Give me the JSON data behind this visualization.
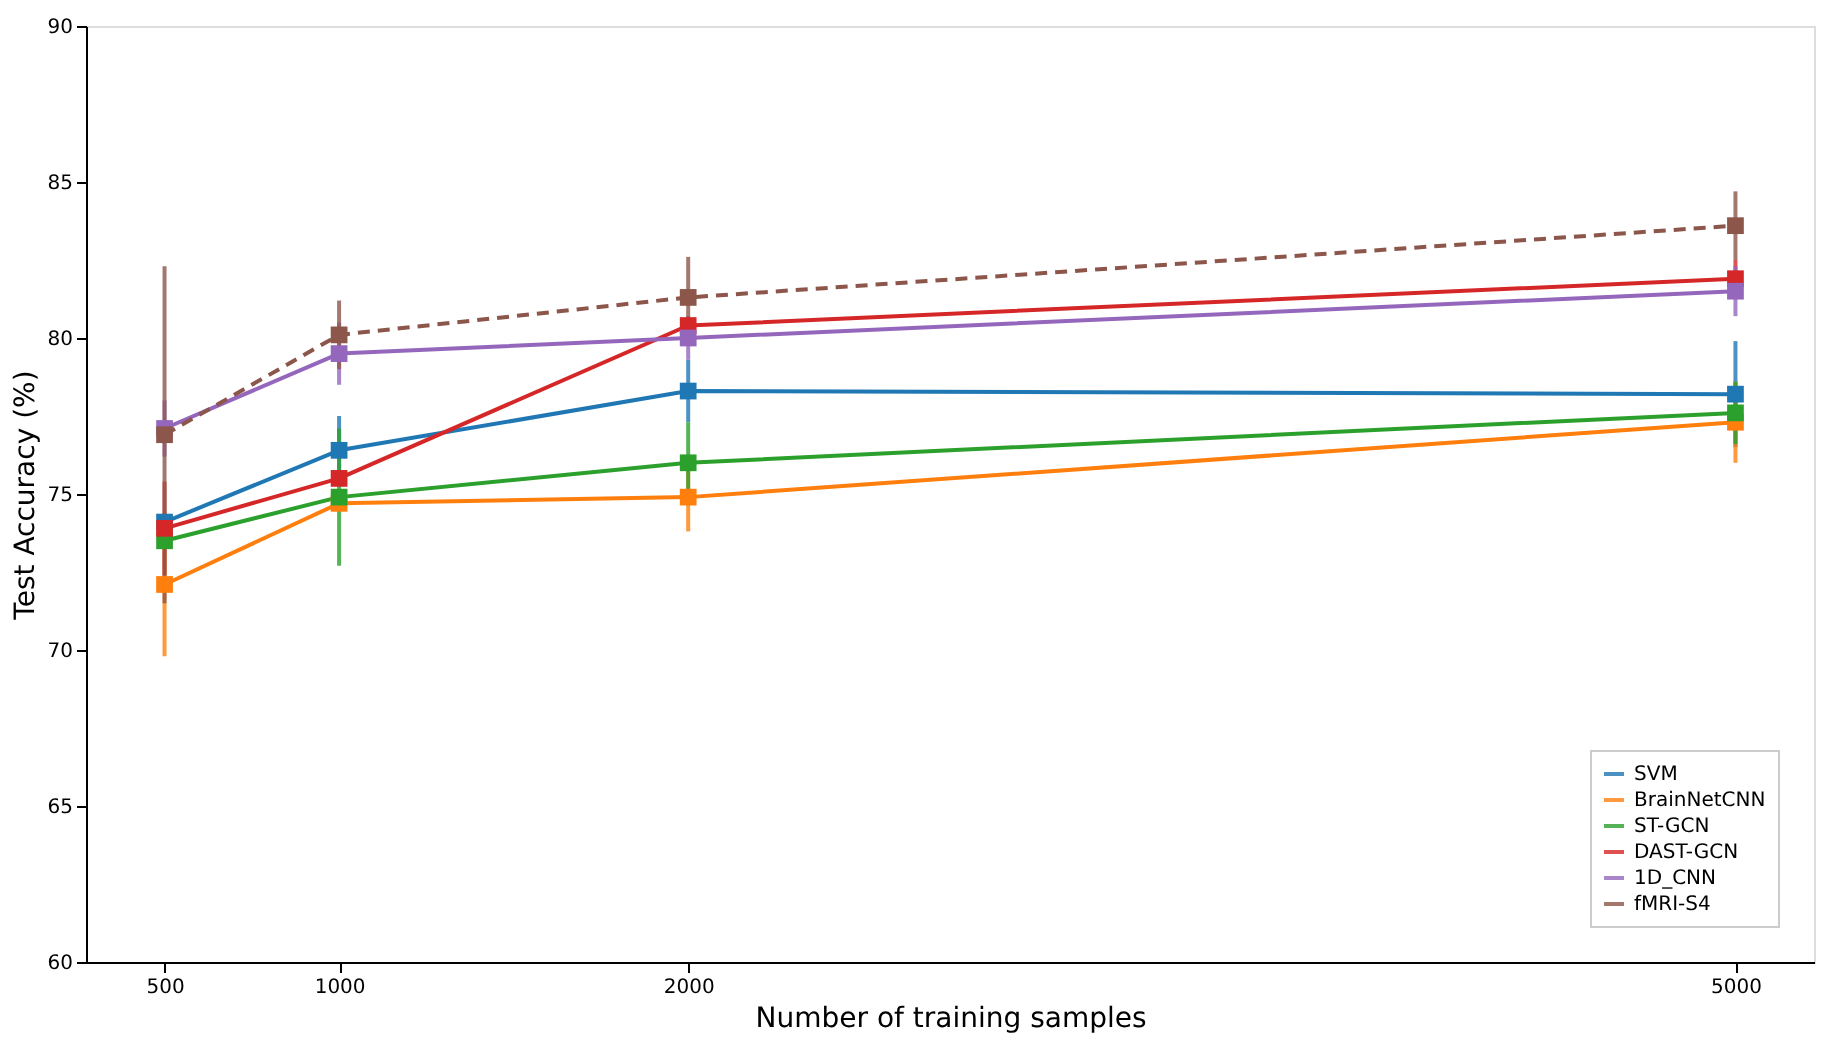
{
  "chart_data": {
    "type": "line",
    "xlabel": "Number of training samples",
    "ylabel": "Test Accuracy (%)",
    "x": [
      500,
      1000,
      2000,
      5000
    ],
    "series": [
      {
        "name": "SVM",
        "color": "#1f77b4",
        "values": [
          74.1,
          76.4,
          78.3,
          78.2
        ],
        "errors": [
          null,
          1.1,
          1.0,
          1.7
        ]
      },
      {
        "name": "BrainNetCNN",
        "color": "#ff7f0e",
        "values": [
          72.1,
          74.7,
          74.9,
          77.3
        ],
        "errors": [
          2.3,
          null,
          1.1,
          1.3
        ]
      },
      {
        "name": "ST-GCN",
        "color": "#2ca02c",
        "values": [
          73.5,
          74.9,
          76.0,
          77.6
        ],
        "errors": [
          null,
          2.2,
          1.3,
          1.0
        ]
      },
      {
        "name": "DAST-GCN",
        "color": "#d62728",
        "values": [
          73.9,
          75.5,
          80.4,
          81.9
        ],
        "errors": [
          1.5,
          null,
          null,
          0.6
        ]
      },
      {
        "name": "1D_CNN",
        "color": "#9467bd",
        "values": [
          77.1,
          79.5,
          80.0,
          81.5
        ],
        "errors": [
          0.9,
          1.0,
          0.7,
          0.8
        ]
      },
      {
        "name": "fMRI-S4",
        "color": "#8c564b",
        "values": [
          76.9,
          80.1,
          81.3,
          83.6
        ],
        "errors": [
          5.4,
          1.1,
          1.3,
          1.1
        ],
        "line_style": "dashed"
      }
    ],
    "xlim": [
      275,
      5225
    ],
    "xticks": [
      500,
      1000,
      2000,
      5000
    ],
    "ylim": [
      60,
      90
    ],
    "yticks": [
      60,
      65,
      70,
      75,
      80,
      85,
      90
    ],
    "grid": false,
    "legend": "bottom right",
    "marker": "square",
    "line_style": "solid"
  }
}
